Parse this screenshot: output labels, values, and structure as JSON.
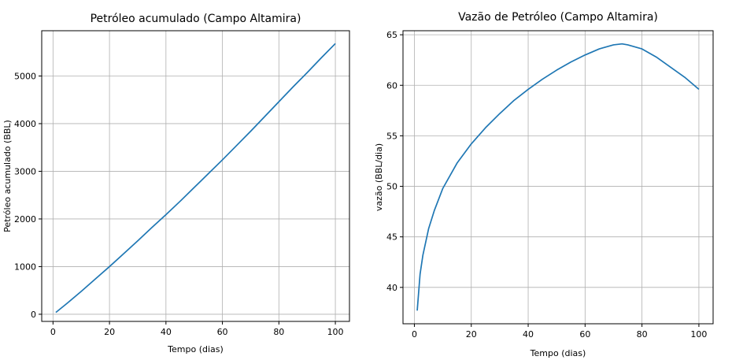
{
  "chart_data": [
    {
      "type": "line",
      "title": "Petróleo acumulado (Campo Altamira)",
      "xlabel": "Tempo (dias)",
      "ylabel": "Petróleo acumulado (BBL)",
      "xlim": [
        -4,
        105
      ],
      "ylim": [
        -150,
        5950
      ],
      "xticks": [
        0,
        20,
        40,
        60,
        80,
        100
      ],
      "yticks": [
        0,
        1000,
        2000,
        3000,
        4000,
        5000
      ],
      "grid": true,
      "color": "#1f77b4",
      "x": [
        1,
        5,
        10,
        15,
        20,
        25,
        30,
        35,
        40,
        45,
        50,
        55,
        60,
        65,
        70,
        75,
        80,
        85,
        90,
        95,
        100
      ],
      "y": [
        38,
        230,
        480,
        740,
        1000,
        1270,
        1540,
        1820,
        2090,
        2370,
        2660,
        2950,
        3240,
        3540,
        3840,
        4150,
        4460,
        4770,
        5070,
        5380,
        5680
      ]
    },
    {
      "type": "line",
      "title": "Vazão de Petróleo (Campo Altamira)",
      "xlabel": "Tempo (dias)",
      "ylabel": "vazão (BBL/dia)",
      "xlim": [
        -4,
        105
      ],
      "ylim": [
        36.4,
        65.4
      ],
      "xticks": [
        0,
        20,
        40,
        60,
        80,
        100
      ],
      "yticks": [
        40,
        45,
        50,
        55,
        60,
        65
      ],
      "grid": true,
      "color": "#1f77b4",
      "x": [
        1,
        2,
        3,
        5,
        7,
        10,
        15,
        20,
        25,
        30,
        35,
        40,
        45,
        50,
        55,
        60,
        65,
        70,
        73,
        75,
        80,
        85,
        90,
        95,
        100
      ],
      "y": [
        37.7,
        41.3,
        43.2,
        45.8,
        47.6,
        49.8,
        52.3,
        54.2,
        55.8,
        57.2,
        58.5,
        59.6,
        60.6,
        61.5,
        62.3,
        63.0,
        63.6,
        64.0,
        64.1,
        64.0,
        63.6,
        62.8,
        61.8,
        60.8,
        59.6
      ]
    }
  ]
}
